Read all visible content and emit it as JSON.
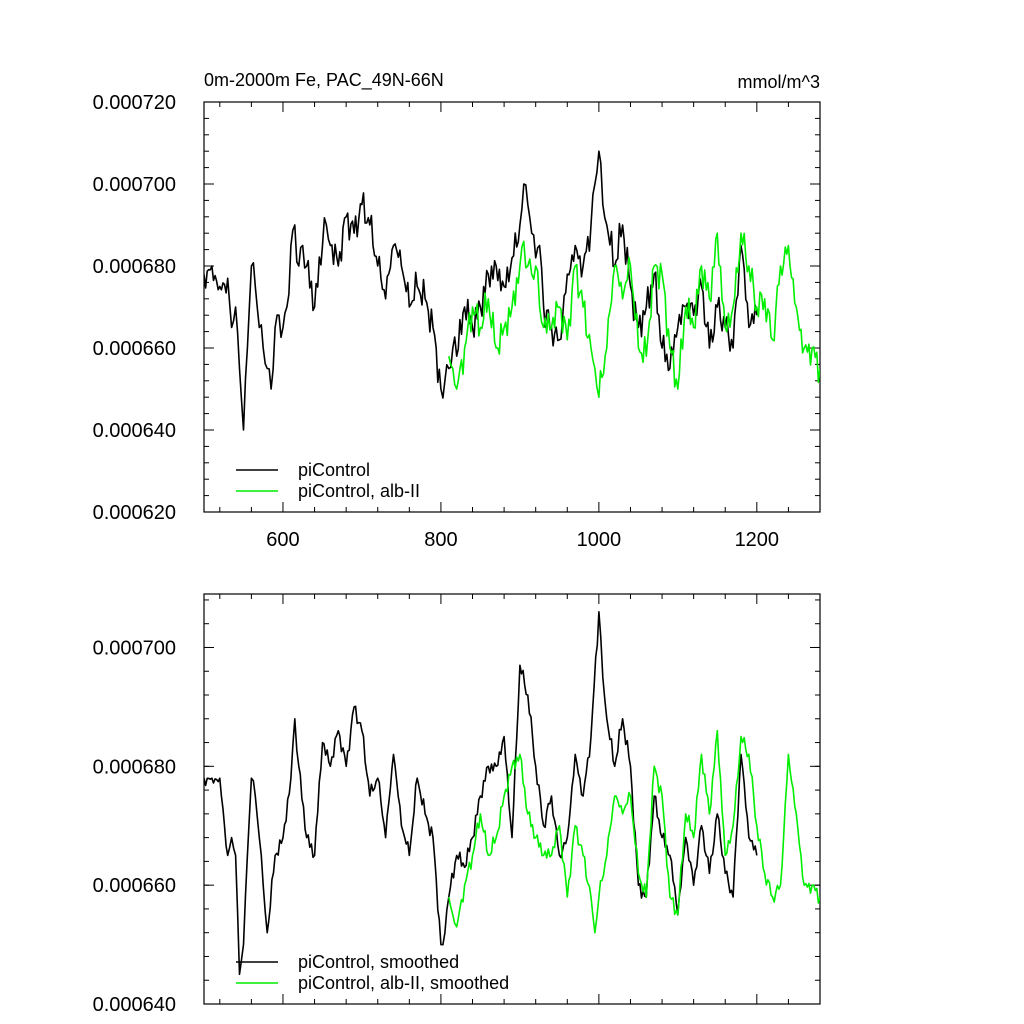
{
  "chart_data": [
    {
      "type": "line",
      "title": "0m-2000m Fe, PAC_49N-66N",
      "units": "mmol/m^3",
      "xlim": [
        500,
        1280
      ],
      "ylim": [
        0.00062,
        0.00072
      ],
      "xticks": [
        600,
        800,
        1000,
        1200
      ],
      "xtick_labels": [
        "600",
        "800",
        "1000",
        "1200"
      ],
      "yticks": [
        0.00062,
        0.00064,
        0.00066,
        0.00068,
        0.0007,
        0.00072
      ],
      "ytick_labels": [
        "0.000620",
        "0.000640",
        "0.000660",
        "0.000680",
        "0.000700",
        "0.000720"
      ],
      "legend_position": "bottom-left",
      "series": [
        {
          "name": "piControl",
          "color": "#000000",
          "x": [
            500,
            510,
            520,
            530,
            535,
            540,
            545,
            550,
            555,
            560,
            565,
            570,
            575,
            580,
            585,
            590,
            595,
            600,
            605,
            610,
            615,
            620,
            625,
            630,
            640,
            650,
            655,
            660,
            670,
            680,
            690,
            700,
            710,
            720,
            730,
            740,
            750,
            760,
            770,
            780,
            790,
            800,
            805,
            810,
            815,
            820,
            830,
            840,
            850,
            860,
            870,
            880,
            890,
            900,
            905,
            910,
            915,
            920,
            925,
            930,
            940,
            950,
            960,
            970,
            980,
            990,
            995,
            1000,
            1005,
            1010,
            1020,
            1030,
            1040,
            1050,
            1060,
            1070,
            1080,
            1090,
            1100,
            1110,
            1120,
            1130,
            1140,
            1150,
            1160,
            1170,
            1180,
            1190,
            1200
          ],
          "y": [
            0.000678,
            0.00068,
            0.000675,
            0.000677,
            0.000665,
            0.00067,
            0.000655,
            0.00064,
            0.00066,
            0.00068,
            0.000675,
            0.000665,
            0.00066,
            0.000655,
            0.00065,
            0.000665,
            0.000668,
            0.000665,
            0.00067,
            0.000685,
            0.00069,
            0.00068,
            0.000685,
            0.00068,
            0.00067,
            0.000685,
            0.00069,
            0.000685,
            0.00068,
            0.000692,
            0.000688,
            0.000695,
            0.00069,
            0.00068,
            0.000672,
            0.000685,
            0.00068,
            0.00067,
            0.000675,
            0.000672,
            0.000665,
            0.00065,
            0.000652,
            0.000655,
            0.00066,
            0.000658,
            0.00067,
            0.000665,
            0.00067,
            0.000678,
            0.00068,
            0.000675,
            0.000682,
            0.00069,
            0.0007,
            0.000695,
            0.000688,
            0.000682,
            0.000685,
            0.00067,
            0.000665,
            0.000662,
            0.000678,
            0.000685,
            0.00068,
            0.00069,
            0.0007,
            0.000708,
            0.000695,
            0.00069,
            0.00068,
            0.00069,
            0.000675,
            0.000665,
            0.00067,
            0.000678,
            0.00066,
            0.000655,
            0.000665,
            0.00067,
            0.000668,
            0.000675,
            0.00066,
            0.00067,
            0.000665,
            0.00066,
            0.000685,
            0.000665,
            0.000668
          ]
        },
        {
          "name": "piControl, alb-II",
          "color": "#00ee00",
          "x": [
            810,
            815,
            820,
            830,
            840,
            850,
            860,
            870,
            880,
            890,
            900,
            905,
            910,
            915,
            920,
            925,
            930,
            940,
            950,
            960,
            970,
            980,
            990,
            995,
            1000,
            1010,
            1020,
            1030,
            1040,
            1050,
            1060,
            1070,
            1080,
            1090,
            1100,
            1110,
            1120,
            1130,
            1140,
            1150,
            1160,
            1170,
            1180,
            1190,
            1200,
            1210,
            1220,
            1230,
            1240,
            1250,
            1260,
            1270,
            1280
          ],
          "y": [
            0.000658,
            0.000655,
            0.00065,
            0.00066,
            0.00067,
            0.000665,
            0.000672,
            0.00066,
            0.000665,
            0.00067,
            0.00068,
            0.000686,
            0.00068,
            0.000678,
            0.00068,
            0.00067,
            0.000665,
            0.000665,
            0.00067,
            0.000662,
            0.00068,
            0.00067,
            0.00066,
            0.000655,
            0.000648,
            0.00066,
            0.00068,
            0.000672,
            0.00068,
            0.00066,
            0.000658,
            0.00068,
            0.000678,
            0.00066,
            0.00065,
            0.00067,
            0.000665,
            0.00068,
            0.000672,
            0.000688,
            0.000665,
            0.00067,
            0.000688,
            0.00068,
            0.00067,
            0.000672,
            0.000662,
            0.00068,
            0.000685,
            0.00067,
            0.00066,
            0.00066,
            0.000655
          ]
        }
      ]
    },
    {
      "type": "line",
      "xlim": [
        500,
        1280
      ],
      "ylim": [
        0.00064,
        0.000709
      ],
      "xticks": [
        600,
        800,
        1000,
        1200
      ],
      "yticks": [
        0.00064,
        0.00066,
        0.00068,
        0.0007
      ],
      "ytick_labels": [
        "0.000640",
        "0.000660",
        "0.000680",
        "0.000700"
      ],
      "legend_position": "bottom-left",
      "series": [
        {
          "name": "piControl, smoothed",
          "color": "#000000",
          "x": [
            500,
            510,
            520,
            530,
            535,
            540,
            545,
            550,
            555,
            560,
            565,
            570,
            575,
            580,
            590,
            600,
            610,
            615,
            620,
            630,
            640,
            650,
            660,
            670,
            680,
            690,
            700,
            710,
            720,
            730,
            740,
            750,
            760,
            770,
            780,
            790,
            800,
            805,
            810,
            820,
            830,
            840,
            850,
            860,
            870,
            880,
            890,
            900,
            910,
            920,
            930,
            940,
            950,
            960,
            970,
            980,
            990,
            1000,
            1005,
            1010,
            1020,
            1030,
            1040,
            1050,
            1060,
            1070,
            1080,
            1090,
            1100,
            1110,
            1120,
            1130,
            1140,
            1150,
            1160,
            1170,
            1180,
            1190,
            1200
          ],
          "y": [
            0.000678,
            0.000678,
            0.000678,
            0.000665,
            0.000668,
            0.000665,
            0.000645,
            0.00065,
            0.000665,
            0.000678,
            0.000675,
            0.000668,
            0.00066,
            0.000652,
            0.000665,
            0.000668,
            0.000678,
            0.000688,
            0.00068,
            0.000668,
            0.000665,
            0.000684,
            0.00068,
            0.000686,
            0.00068,
            0.00069,
            0.000686,
            0.000675,
            0.000678,
            0.000668,
            0.000682,
            0.00067,
            0.000665,
            0.000678,
            0.000672,
            0.000668,
            0.00065,
            0.000652,
            0.000658,
            0.000665,
            0.000663,
            0.000668,
            0.000675,
            0.00068,
            0.00068,
            0.000685,
            0.000668,
            0.000697,
            0.000692,
            0.00068,
            0.00067,
            0.000675,
            0.000665,
            0.000668,
            0.000682,
            0.000675,
            0.000685,
            0.000706,
            0.000695,
            0.000688,
            0.00068,
            0.000688,
            0.00068,
            0.00066,
            0.000658,
            0.000675,
            0.000668,
            0.000665,
            0.000655,
            0.000668,
            0.00066,
            0.00067,
            0.000662,
            0.000672,
            0.000662,
            0.000658,
            0.000682,
            0.000668,
            0.000665
          ]
        },
        {
          "name": "piControl, alb-II, smoothed",
          "color": "#00ee00",
          "x": [
            810,
            815,
            820,
            830,
            840,
            850,
            860,
            870,
            880,
            890,
            900,
            910,
            920,
            930,
            940,
            950,
            960,
            970,
            980,
            990,
            995,
            1000,
            1010,
            1020,
            1030,
            1040,
            1050,
            1060,
            1070,
            1080,
            1090,
            1100,
            1110,
            1120,
            1130,
            1140,
            1150,
            1160,
            1170,
            1180,
            1190,
            1200,
            1210,
            1220,
            1230,
            1240,
            1250,
            1260,
            1270,
            1280
          ],
          "y": [
            0.000658,
            0.000655,
            0.000653,
            0.00066,
            0.000665,
            0.000672,
            0.000665,
            0.000668,
            0.000675,
            0.00068,
            0.000682,
            0.000672,
            0.000668,
            0.000665,
            0.000665,
            0.00067,
            0.000658,
            0.00067,
            0.000665,
            0.000658,
            0.000652,
            0.000658,
            0.000665,
            0.000675,
            0.000672,
            0.000675,
            0.000662,
            0.000658,
            0.00068,
            0.000675,
            0.000658,
            0.000655,
            0.000672,
            0.000668,
            0.000682,
            0.000672,
            0.000686,
            0.000665,
            0.00067,
            0.000685,
            0.000682,
            0.00067,
            0.000662,
            0.000658,
            0.00066,
            0.000682,
            0.000672,
            0.00066,
            0.00066,
            0.000658
          ]
        }
      ]
    }
  ]
}
